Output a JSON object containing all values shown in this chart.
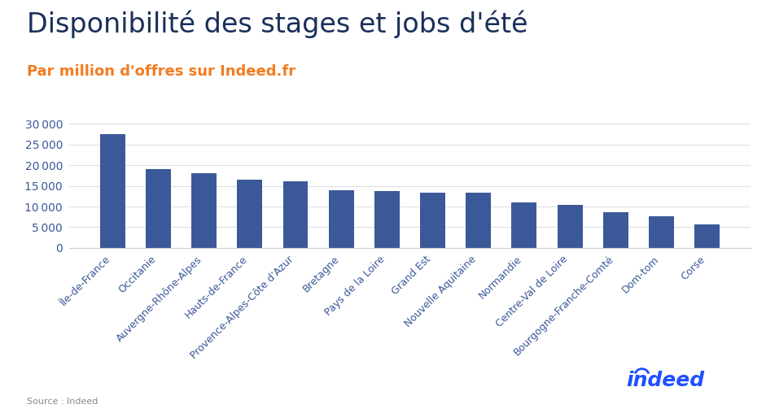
{
  "title": "Disponibilité des stages et jobs d'été",
  "subtitle": "Par million d'offres sur Indeed.fr",
  "categories": [
    "Île-de-France",
    "Occitanie",
    "Auvergne-Rhône-Alpes",
    "Hauts-de-France",
    "Provence-Alpes-Côte d'Azur",
    "Bretagne",
    "Pays de la Loire",
    "Grand Est",
    "Nouvelle Aquitaine",
    "Normandie",
    "Centre-Val de Loire",
    "Bourgogne-Franche-Comté",
    "Dom-tom",
    "Corse"
  ],
  "values": [
    27500,
    19000,
    18000,
    16400,
    16100,
    14000,
    13800,
    13400,
    13300,
    10900,
    10400,
    8700,
    7700,
    5700
  ],
  "bar_color": "#3B5998",
  "title_color": "#1a2f5a",
  "subtitle_color": "#F47B20",
  "ytick_color": "#3B5998",
  "xtick_color": "#3B5998",
  "indeed_color": "#2050FF",
  "source_color": "#888888",
  "source_text": "Source : Indeed",
  "ylim": [
    0,
    32000
  ],
  "yticks": [
    0,
    5000,
    10000,
    15000,
    20000,
    25000,
    30000
  ],
  "background_color": "#FFFFFF",
  "title_fontsize": 24,
  "subtitle_fontsize": 13,
  "ytick_fontsize": 10,
  "xtick_fontsize": 9,
  "source_fontsize": 8,
  "indeed_fontsize": 18
}
